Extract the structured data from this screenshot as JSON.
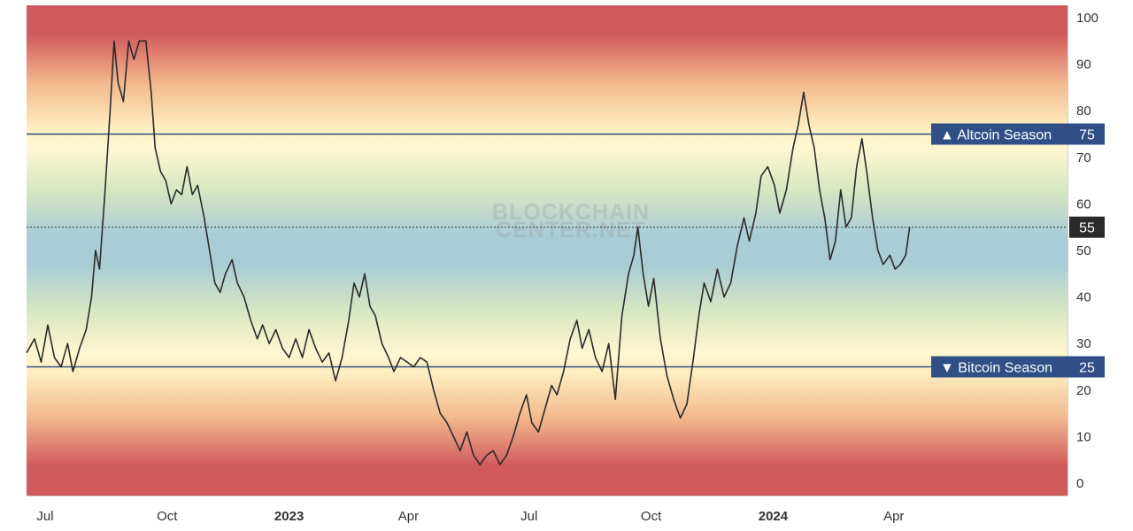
{
  "chart_data": {
    "type": "line",
    "title": "",
    "y_range": [
      0,
      100
    ],
    "y_ticks": [
      0,
      10,
      20,
      30,
      40,
      50,
      60,
      70,
      80,
      90,
      100
    ],
    "x_ticks": [
      {
        "label": "Jul",
        "date": "2022-07-01",
        "bold": false
      },
      {
        "label": "Oct",
        "date": "2022-10-01",
        "bold": false
      },
      {
        "label": "2023",
        "date": "2023-01-01",
        "bold": true
      },
      {
        "label": "Apr",
        "date": "2023-04-01",
        "bold": false
      },
      {
        "label": "Jul",
        "date": "2023-07-01",
        "bold": false
      },
      {
        "label": "Oct",
        "date": "2023-10-01",
        "bold": false
      },
      {
        "label": "2024",
        "date": "2024-01-01",
        "bold": true
      },
      {
        "label": "Apr",
        "date": "2024-04-01",
        "bold": false
      }
    ],
    "x_range": [
      "2022-06-17",
      "2024-08-10"
    ],
    "thresholds": [
      {
        "label": "▲ Altcoin Season",
        "value": 75,
        "value_label": "75",
        "color": "#2f4f86"
      },
      {
        "label": "▼ Bitcoin Season",
        "value": 25,
        "value_label": "25",
        "color": "#2f4f86"
      }
    ],
    "current": {
      "value": 55,
      "value_label": "55"
    },
    "watermark": [
      "BLOCKCHAIN",
      "CENTER.NET"
    ],
    "line_color": "#2b2b2b",
    "band_colors": {
      "extreme": "#d15a5c",
      "mid": "#fff7d1",
      "center": "#a9ccd6"
    },
    "series": [
      {
        "points": [
          [
            "2022-06-17",
            28
          ],
          [
            "2022-06-23",
            31
          ],
          [
            "2022-06-28",
            26
          ],
          [
            "2022-07-03",
            34
          ],
          [
            "2022-07-08",
            27
          ],
          [
            "2022-07-13",
            25
          ],
          [
            "2022-07-18",
            30
          ],
          [
            "2022-07-22",
            24
          ],
          [
            "2022-07-27",
            29
          ],
          [
            "2022-08-01",
            33
          ],
          [
            "2022-08-05",
            40
          ],
          [
            "2022-08-08",
            50
          ],
          [
            "2022-08-11",
            46
          ],
          [
            "2022-08-15",
            62
          ],
          [
            "2022-08-19",
            80
          ],
          [
            "2022-08-22",
            95
          ],
          [
            "2022-08-25",
            86
          ],
          [
            "2022-08-29",
            82
          ],
          [
            "2022-09-02",
            95
          ],
          [
            "2022-09-06",
            91
          ],
          [
            "2022-09-10",
            95
          ],
          [
            "2022-09-15",
            95
          ],
          [
            "2022-09-19",
            84
          ],
          [
            "2022-09-22",
            72
          ],
          [
            "2022-09-26",
            67
          ],
          [
            "2022-09-30",
            65
          ],
          [
            "2022-10-04",
            60
          ],
          [
            "2022-10-08",
            63
          ],
          [
            "2022-10-12",
            62
          ],
          [
            "2022-10-16",
            68
          ],
          [
            "2022-10-20",
            62
          ],
          [
            "2022-10-24",
            64
          ],
          [
            "2022-10-29",
            57
          ],
          [
            "2022-11-02",
            50
          ],
          [
            "2022-11-06",
            43
          ],
          [
            "2022-11-10",
            41
          ],
          [
            "2022-11-14",
            45
          ],
          [
            "2022-11-19",
            48
          ],
          [
            "2022-11-23",
            43
          ],
          [
            "2022-11-28",
            40
          ],
          [
            "2022-12-03",
            35
          ],
          [
            "2022-12-08",
            31
          ],
          [
            "2022-12-12",
            34
          ],
          [
            "2022-12-17",
            30
          ],
          [
            "2022-12-22",
            33
          ],
          [
            "2022-12-27",
            29
          ],
          [
            "2023-01-01",
            27
          ],
          [
            "2023-01-06",
            31
          ],
          [
            "2023-01-11",
            27
          ],
          [
            "2023-01-16",
            33
          ],
          [
            "2023-01-21",
            29
          ],
          [
            "2023-01-26",
            26
          ],
          [
            "2023-01-31",
            28
          ],
          [
            "2023-02-05",
            22
          ],
          [
            "2023-02-10",
            27
          ],
          [
            "2023-02-15",
            35
          ],
          [
            "2023-02-19",
            43
          ],
          [
            "2023-02-23",
            40
          ],
          [
            "2023-02-27",
            45
          ],
          [
            "2023-03-03",
            38
          ],
          [
            "2023-03-07",
            36
          ],
          [
            "2023-03-12",
            30
          ],
          [
            "2023-03-17",
            27
          ],
          [
            "2023-03-21",
            24
          ],
          [
            "2023-03-26",
            27
          ],
          [
            "2023-03-31",
            26
          ],
          [
            "2023-04-05",
            25
          ],
          [
            "2023-04-10",
            27
          ],
          [
            "2023-04-15",
            26
          ],
          [
            "2023-04-20",
            20
          ],
          [
            "2023-04-25",
            15
          ],
          [
            "2023-04-30",
            13
          ],
          [
            "2023-05-05",
            10
          ],
          [
            "2023-05-10",
            7
          ],
          [
            "2023-05-15",
            11
          ],
          [
            "2023-05-20",
            6
          ],
          [
            "2023-05-25",
            4
          ],
          [
            "2023-05-30",
            6
          ],
          [
            "2023-06-04",
            7
          ],
          [
            "2023-06-09",
            4
          ],
          [
            "2023-06-14",
            6
          ],
          [
            "2023-06-19",
            10
          ],
          [
            "2023-06-24",
            15
          ],
          [
            "2023-06-29",
            19
          ],
          [
            "2023-07-03",
            13
          ],
          [
            "2023-07-08",
            11
          ],
          [
            "2023-07-13",
            16
          ],
          [
            "2023-07-18",
            21
          ],
          [
            "2023-07-22",
            19
          ],
          [
            "2023-07-27",
            24
          ],
          [
            "2023-08-01",
            31
          ],
          [
            "2023-08-06",
            35
          ],
          [
            "2023-08-10",
            29
          ],
          [
            "2023-08-15",
            33
          ],
          [
            "2023-08-20",
            27
          ],
          [
            "2023-08-25",
            24
          ],
          [
            "2023-08-30",
            30
          ],
          [
            "2023-09-04",
            18
          ],
          [
            "2023-09-09",
            36
          ],
          [
            "2023-09-14",
            45
          ],
          [
            "2023-09-18",
            49
          ],
          [
            "2023-09-21",
            55
          ],
          [
            "2023-09-25",
            45
          ],
          [
            "2023-09-29",
            38
          ],
          [
            "2023-10-03",
            44
          ],
          [
            "2023-10-08",
            31
          ],
          [
            "2023-10-13",
            23
          ],
          [
            "2023-10-18",
            18
          ],
          [
            "2023-10-23",
            14
          ],
          [
            "2023-10-28",
            17
          ],
          [
            "2023-11-02",
            27
          ],
          [
            "2023-11-06",
            36
          ],
          [
            "2023-11-10",
            43
          ],
          [
            "2023-11-15",
            39
          ],
          [
            "2023-11-20",
            46
          ],
          [
            "2023-11-25",
            40
          ],
          [
            "2023-11-30",
            43
          ],
          [
            "2023-12-05",
            51
          ],
          [
            "2023-12-10",
            57
          ],
          [
            "2023-12-14",
            52
          ],
          [
            "2023-12-19",
            58
          ],
          [
            "2023-12-23",
            66
          ],
          [
            "2023-12-28",
            68
          ],
          [
            "2024-01-02",
            64
          ],
          [
            "2024-01-06",
            58
          ],
          [
            "2024-01-11",
            63
          ],
          [
            "2024-01-16",
            72
          ],
          [
            "2024-01-20",
            77
          ],
          [
            "2024-01-24",
            84
          ],
          [
            "2024-01-28",
            77
          ],
          [
            "2024-02-01",
            72
          ],
          [
            "2024-02-05",
            63
          ],
          [
            "2024-02-09",
            57
          ],
          [
            "2024-02-13",
            48
          ],
          [
            "2024-02-17",
            52
          ],
          [
            "2024-02-21",
            63
          ],
          [
            "2024-02-25",
            55
          ],
          [
            "2024-02-29",
            57
          ],
          [
            "2024-03-04",
            68
          ],
          [
            "2024-03-08",
            74
          ],
          [
            "2024-03-12",
            66
          ],
          [
            "2024-03-16",
            57
          ],
          [
            "2024-03-20",
            50
          ],
          [
            "2024-03-24",
            47
          ],
          [
            "2024-03-29",
            49
          ],
          [
            "2024-04-02",
            46
          ],
          [
            "2024-04-06",
            47
          ],
          [
            "2024-04-10",
            49
          ],
          [
            "2024-04-13",
            55
          ]
        ]
      }
    ]
  }
}
